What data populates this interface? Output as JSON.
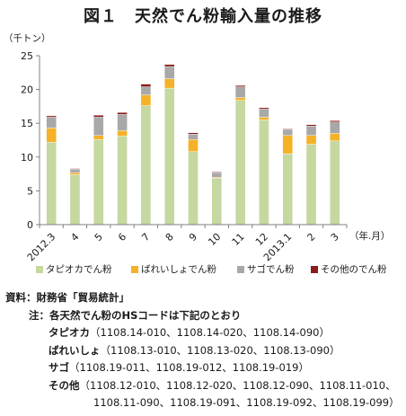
{
  "title": "図１　天然でん粉輸入量の推移",
  "chart_data": {
    "type": "bar",
    "stacked": true,
    "ylabel": "（千トン）",
    "xlabel": "（年.月）",
    "ylim": [
      0,
      25
    ],
    "yticks": [
      0,
      5,
      10,
      15,
      20,
      25
    ],
    "grid": false,
    "legend_position": "bottom",
    "categories": [
      "2012.3",
      "4",
      "5",
      "6",
      "7",
      "8",
      "9",
      "10",
      "11",
      "12",
      "2013.1",
      "2",
      "3"
    ],
    "series": [
      {
        "name": "タピオカでん粉",
        "color": "#c5d8a0",
        "values": [
          12.2,
          7.4,
          12.6,
          13.1,
          17.6,
          20.2,
          10.8,
          6.9,
          18.4,
          15.5,
          10.5,
          11.9,
          12.4
        ]
      },
      {
        "name": "ばれいしょでん粉",
        "color": "#f5b228",
        "values": [
          2.1,
          0.3,
          0.6,
          0.8,
          1.6,
          1.4,
          1.8,
          0.1,
          0.4,
          0.4,
          2.7,
          1.3,
          1.1
        ]
      },
      {
        "name": "サゴでん粉",
        "color": "#a8a8a8",
        "values": [
          1.6,
          0.5,
          2.7,
          2.4,
          1.2,
          1.8,
          0.8,
          0.7,
          1.6,
          1.2,
          0.9,
          1.4,
          1.7
        ]
      },
      {
        "name": "その他のでん粉",
        "color": "#8b1c1c",
        "values": [
          0.2,
          0.1,
          0.3,
          0.3,
          0.4,
          0.3,
          0.2,
          0.1,
          0.2,
          0.2,
          0.1,
          0.2,
          0.2
        ]
      }
    ]
  },
  "notes": {
    "source_prefix": "資料：",
    "source_text": "財務省「貿易統計」",
    "note_prefix": "注：",
    "note_text": "各天然でん粉のHSコードは下記のとおり",
    "tapioca_label": "タピオカ",
    "tapioca_codes": "（1108.14-010、1108.14-020、1108.14-090）",
    "potato_label": "ばれいしょ",
    "potato_codes": "（1108.13-010、1108.13-020、1108.13-090）",
    "sago_label": "サゴ",
    "sago_codes": "（1108.19-011、1108.19-012、1108.19-019）",
    "other_label": "その他",
    "other_codes_1": "（1108.12-010、1108.12-020、1108.12-090、1108.11-010、",
    "other_codes_2": "1108.11-090、1108.19-091、1108.19-092、1108.19-099）"
  }
}
